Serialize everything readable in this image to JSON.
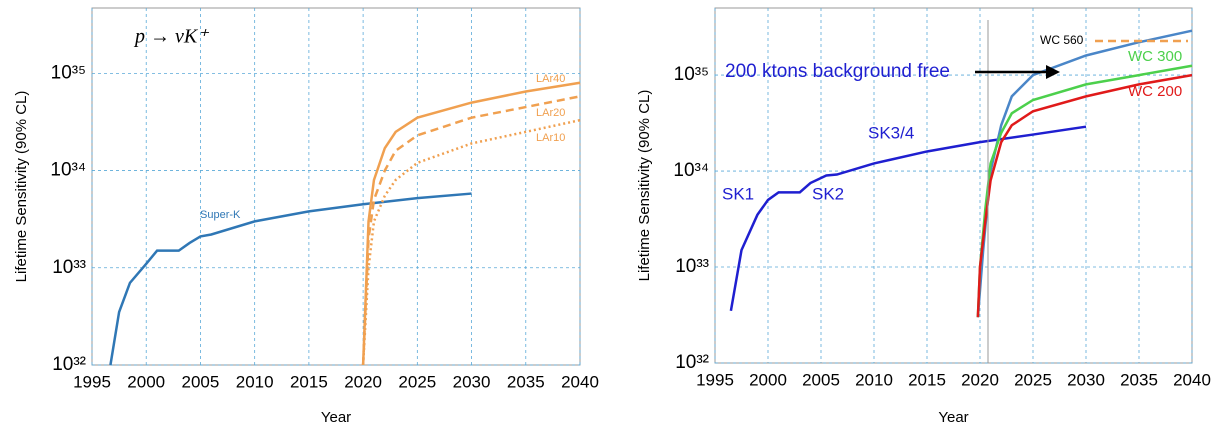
{
  "chart_data": [
    {
      "type": "line",
      "annotation": "p → νK⁺",
      "x_label": "Year",
      "y_label": "Lifetime Sensitivity (90% CL)",
      "log_y": true,
      "grid": true,
      "xlim": [
        1995,
        2040
      ],
      "xticks": [
        1995,
        2000,
        2005,
        2010,
        2015,
        2020,
        2025,
        2030,
        2035,
        2040
      ],
      "ylim": [
        1e+32,
        4.7e+35
      ],
      "yticks": [
        {
          "value": 1e+32,
          "label": "10³²"
        },
        {
          "value": 1e+33,
          "label": "10³³"
        },
        {
          "value": 1e+34,
          "label": "10³⁴"
        },
        {
          "value": 1e+35,
          "label": "10³⁵"
        }
      ],
      "series": [
        {
          "name": "Super-K",
          "color": "#2f77b5",
          "dash": "solid",
          "x": [
            1996.7,
            1997.5,
            1998.5,
            2000,
            2001,
            2003,
            2004,
            2005,
            2006,
            2010,
            2015,
            2020,
            2025,
            2030
          ],
          "values": [
            1e+32,
            3.5e+32,
            7e+32,
            1.1e+33,
            1.5e+33,
            1.5e+33,
            1.8e+33,
            2.1e+33,
            2.2e+33,
            3e+33,
            3.8e+33,
            4.5e+33,
            5.2e+33,
            5.8e+33
          ]
        },
        {
          "name": "LAr40",
          "color": "#f0a050",
          "dash": "solid",
          "x": [
            2020,
            2020.5,
            2021,
            2022,
            2023,
            2025,
            2030,
            2035,
            2040
          ],
          "values": [
            1e+32,
            3e+33,
            8e+33,
            1.7e+34,
            2.5e+34,
            3.5e+34,
            5e+34,
            6.5e+34,
            8e+34
          ]
        },
        {
          "name": "LAr20",
          "color": "#f0a050",
          "dash": "dashed",
          "x": [
            2020,
            2020.5,
            2021,
            2022,
            2023,
            2025,
            2030,
            2035,
            2040
          ],
          "values": [
            1e+32,
            2e+33,
            5e+33,
            1e+34,
            1.6e+34,
            2.3e+34,
            3.5e+34,
            4.5e+34,
            5.8e+34
          ]
        },
        {
          "name": "LAr10",
          "color": "#f0a050",
          "dash": "dotted",
          "x": [
            2020,
            2020.5,
            2021,
            2022,
            2023,
            2025,
            2030,
            2035,
            2040
          ],
          "values": [
            1e+32,
            1e+33,
            3e+33,
            5.5e+33,
            8e+33,
            1.2e+34,
            1.9e+34,
            2.5e+34,
            3.3e+34
          ]
        }
      ]
    },
    {
      "type": "line",
      "annotation": "200 ktons background free",
      "sk_labels": [
        "SK1",
        "SK2",
        "SK3/4"
      ],
      "x_label": "Year",
      "y_label": "Lifetime Sensitivity (90% CL)",
      "log_y": true,
      "grid": true,
      "xlim": [
        1995,
        2040
      ],
      "xticks": [
        1995,
        2000,
        2005,
        2010,
        2015,
        2020,
        2025,
        2030,
        2035,
        2040
      ],
      "ylim": [
        1e+32,
        5e+35
      ],
      "yticks": [
        {
          "value": 1e+32,
          "label": "10³²"
        },
        {
          "value": 1e+33,
          "label": "10³³"
        },
        {
          "value": 1e+34,
          "label": "10³⁴"
        },
        {
          "value": 1e+35,
          "label": "10³⁵"
        }
      ],
      "series": [
        {
          "name": "SK",
          "color": "#1f1fd0",
          "dash": "solid",
          "x": [
            1996.5,
            1997.5,
            1999,
            2000,
            2001,
            2003,
            2004,
            2005.5,
            2006.5,
            2010,
            2015,
            2020,
            2025,
            2030
          ],
          "values": [
            3.5e+32,
            1.5e+33,
            3.5e+33,
            5e+33,
            6e+33,
            6e+33,
            7.5e+33,
            9e+33,
            9.2e+33,
            1.2e+34,
            1.6e+34,
            2e+34,
            2.4e+34,
            2.9e+34
          ]
        },
        {
          "name": "WC 560",
          "color": "#4a86c8",
          "dash": "solid",
          "x": [
            2019.8,
            2020.3,
            2021,
            2022,
            2023,
            2025,
            2030,
            2035,
            2040
          ],
          "values": [
            3e+32,
            1.5e+33,
            1e+34,
            3e+34,
            6e+34,
            1e+35,
            1.6e+35,
            2.2e+35,
            2.9e+35
          ]
        },
        {
          "name": "WC 300",
          "color": "#4cd04c",
          "dash": "solid",
          "x": [
            2019.8,
            2020,
            2020.5,
            2021,
            2022,
            2023,
            2025,
            2030,
            2035,
            2040
          ],
          "values": [
            3e+32,
            1e+33,
            4e+33,
            1.2e+34,
            2.5e+34,
            4e+34,
            5.5e+34,
            8e+34,
            1e+35,
            1.25e+35
          ]
        },
        {
          "name": "WC 200",
          "color": "#e01a1a",
          "dash": "solid",
          "x": [
            2019.8,
            2020,
            2020.5,
            2021,
            2022,
            2023,
            2025,
            2030,
            2035,
            2040
          ],
          "values": [
            3e+32,
            1e+33,
            3e+33,
            8e+33,
            2e+34,
            3e+34,
            4.2e+34,
            6e+34,
            8e+34,
            1e+35
          ]
        }
      ]
    }
  ]
}
